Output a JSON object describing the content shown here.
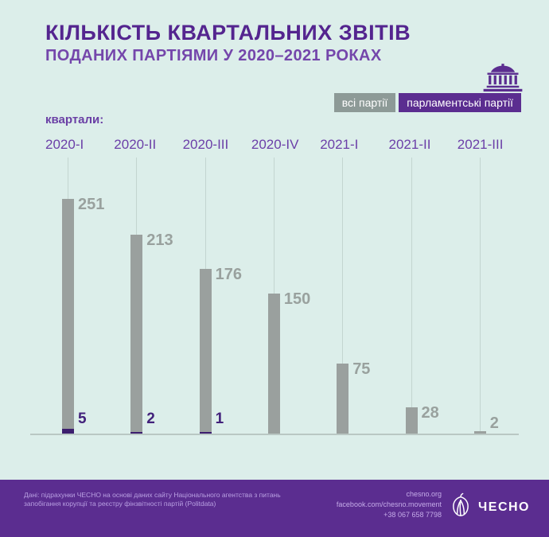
{
  "meta": {
    "bg": "#dceeea",
    "accent_purple": "#5b2d90",
    "bar_gray": "#9aa09e",
    "dark_purple": "#3c1e6e"
  },
  "header": {
    "title": "КІЛЬКІСТЬ КВАРТАЛЬНИХ ЗВІТІВ",
    "subtitle": "ПОДАНИХ ПАРТІЯМИ У 2020–2021 РОКАХ"
  },
  "legend": {
    "all_parties": "всі партії",
    "parliamentary_parties": "парламентські партії"
  },
  "chart_data": {
    "type": "bar",
    "axis_label": "квартали:",
    "categories": [
      "2020-I",
      "2020-II",
      "2020-III",
      "2020-IV",
      "2021-I",
      "2021-II",
      "2021-III"
    ],
    "series": [
      {
        "name": "всі партії",
        "color": "#9aa09e",
        "values": [
          251,
          213,
          176,
          150,
          75,
          28,
          2
        ]
      },
      {
        "name": "парламентські партії",
        "color": "#3c1e6e",
        "values": [
          5,
          2,
          1,
          null,
          null,
          null,
          null
        ]
      }
    ],
    "ylim": [
      0,
      260
    ],
    "grid": "vertical-gridlines",
    "legend_position": "top-right",
    "value_labels": "shown-at-bar-top"
  },
  "footer": {
    "source_note": "Дані: підрахунки ЧЕСНО на основі даних сайту Національного агентства з питань запобігання корупції та реєстру фінзвітності партій (Politdata)",
    "links": [
      "chesno.org",
      "facebook.com/chesno.movement",
      "+38 067 658 7798"
    ],
    "brand": "ЧЕСНО"
  }
}
